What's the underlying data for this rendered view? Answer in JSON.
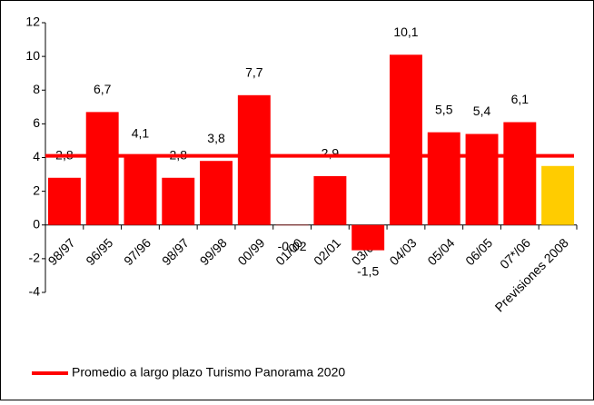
{
  "chart_data": {
    "type": "bar",
    "categories": [
      "98/97",
      "96/95",
      "97/96",
      "98/97",
      "99/98",
      "00/99",
      "01/00",
      "02/01",
      "03/02",
      "04/03",
      "05/04",
      "06/05",
      "07*/06",
      "Previsiones 2008"
    ],
    "values": [
      2.8,
      6.7,
      4.1,
      2.8,
      3.8,
      7.7,
      -0.02,
      2.9,
      -1.5,
      10.1,
      5.5,
      5.4,
      6.1,
      3.5
    ],
    "value_labels": [
      "2,8",
      "6,7",
      "4,1",
      "2,8",
      "3,8",
      "7,7",
      "-0,02",
      "2,9",
      "-1,5",
      "10,1",
      "5,5",
      "5,4",
      "6,1",
      null
    ],
    "colors": [
      "#ff0000",
      "#ff0000",
      "#ff0000",
      "#ff0000",
      "#ff0000",
      "#ff0000",
      "#ff0000",
      "#ff0000",
      "#ff0000",
      "#ff0000",
      "#ff0000",
      "#ff0000",
      "#ff0000",
      "#ffcc00"
    ],
    "reference_line": {
      "name": "Promedio a largo plazo Turismo Panorama 2020",
      "value": 4.1,
      "color": "#ff0000"
    },
    "ylim": [
      -4,
      12
    ],
    "yticks": [
      -4,
      -2,
      0,
      2,
      4,
      6,
      8,
      10,
      12
    ]
  }
}
